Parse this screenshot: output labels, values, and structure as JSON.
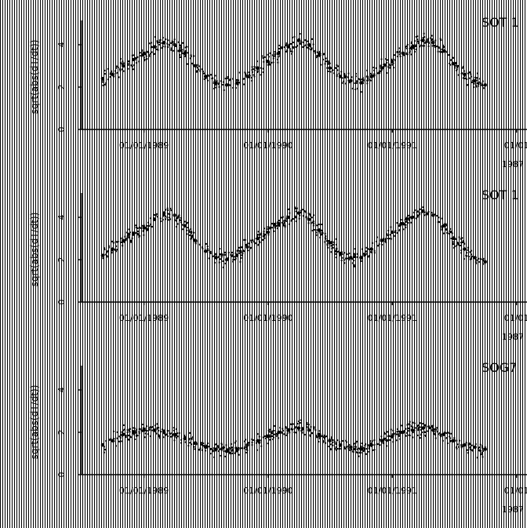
{
  "colors": {
    "background": "#ffffff",
    "ink": "#000000",
    "hatch": "#000000"
  },
  "chart_data": [
    {
      "type": "scatter",
      "title": "SOT 1",
      "ylabel": "sqrt(abs(dT/dt))",
      "y_ticks": [
        "0",
        "2",
        "4"
      ],
      "ylim": [
        0,
        5
      ],
      "x_ticks": [
        "01/01/1989",
        "01/01/1990",
        "01/01/1991",
        "01/01"
      ],
      "x_extra_label": "1987",
      "xlim": [
        "1988-07-01",
        "1992-02-01"
      ],
      "series": [
        {
          "points": [
            [
              "1988-09-01",
              2.4
            ],
            [
              "1988-10-01",
              2.6
            ],
            [
              "1988-11-01",
              3.0
            ],
            [
              "1988-12-01",
              3.3
            ],
            [
              "1989-01-01",
              3.6
            ],
            [
              "1989-02-01",
              3.9
            ],
            [
              "1989-03-01",
              4.1
            ],
            [
              "1989-04-01",
              4.0
            ],
            [
              "1989-05-01",
              3.6
            ],
            [
              "1989-06-01",
              3.0
            ],
            [
              "1989-07-01",
              2.5
            ],
            [
              "1989-08-01",
              2.2
            ],
            [
              "1989-09-01",
              2.1
            ],
            [
              "1989-10-01",
              2.2
            ],
            [
              "1989-11-01",
              2.5
            ],
            [
              "1989-12-01",
              2.9
            ],
            [
              "1990-01-01",
              3.2
            ],
            [
              "1990-02-01",
              3.6
            ],
            [
              "1990-03-01",
              3.9
            ],
            [
              "1990-04-01",
              4.2
            ],
            [
              "1990-05-01",
              4.0
            ],
            [
              "1990-06-01",
              3.5
            ],
            [
              "1990-07-01",
              2.9
            ],
            [
              "1990-08-01",
              2.5
            ],
            [
              "1990-09-01",
              2.3
            ],
            [
              "1990-10-01",
              2.2
            ],
            [
              "1990-11-01",
              2.5
            ],
            [
              "1990-12-01",
              2.9
            ],
            [
              "1991-01-01",
              3.2
            ],
            [
              "1991-02-01",
              3.6
            ],
            [
              "1991-03-01",
              3.9
            ],
            [
              "1991-04-01",
              4.2
            ],
            [
              "1991-05-01",
              4.1
            ],
            [
              "1991-06-01",
              3.7
            ],
            [
              "1991-07-01",
              3.1
            ],
            [
              "1991-08-01",
              2.6
            ],
            [
              "1991-09-01",
              2.3
            ],
            [
              "1991-10-01",
              2.1
            ]
          ]
        }
      ]
    },
    {
      "type": "scatter",
      "title": "SOT 1",
      "ylabel": "sqrt(abs(dT/dt))",
      "y_ticks": [
        "0",
        "2",
        "4"
      ],
      "ylim": [
        0,
        5
      ],
      "x_ticks": [
        "01/01/1989",
        "01/01/1990",
        "01/01/1991",
        "01/01"
      ],
      "x_extra_label": "1987",
      "xlim": [
        "1988-07-01",
        "1992-02-01"
      ],
      "series": [
        {
          "points": [
            [
              "1988-09-01",
              2.2
            ],
            [
              "1988-10-01",
              2.5
            ],
            [
              "1988-11-01",
              2.9
            ],
            [
              "1988-12-01",
              3.2
            ],
            [
              "1989-01-01",
              3.5
            ],
            [
              "1989-02-01",
              3.9
            ],
            [
              "1989-03-01",
              4.2
            ],
            [
              "1989-04-01",
              4.1
            ],
            [
              "1989-05-01",
              3.6
            ],
            [
              "1989-06-01",
              2.9
            ],
            [
              "1989-07-01",
              2.4
            ],
            [
              "1989-08-01",
              2.1
            ],
            [
              "1989-09-01",
              2.0
            ],
            [
              "1989-10-01",
              2.2
            ],
            [
              "1989-11-01",
              2.6
            ],
            [
              "1989-12-01",
              3.0
            ],
            [
              "1990-01-01",
              3.3
            ],
            [
              "1990-02-01",
              3.7
            ],
            [
              "1990-03-01",
              4.0
            ],
            [
              "1990-04-01",
              4.2
            ],
            [
              "1990-05-01",
              3.9
            ],
            [
              "1990-06-01",
              3.4
            ],
            [
              "1990-07-01",
              2.8
            ],
            [
              "1990-08-01",
              2.3
            ],
            [
              "1990-09-01",
              2.1
            ],
            [
              "1990-10-01",
              2.1
            ],
            [
              "1990-11-01",
              2.5
            ],
            [
              "1990-12-01",
              2.9
            ],
            [
              "1991-01-01",
              3.3
            ],
            [
              "1991-02-01",
              3.7
            ],
            [
              "1991-03-01",
              4.0
            ],
            [
              "1991-04-01",
              4.3
            ],
            [
              "1991-05-01",
              4.1
            ],
            [
              "1991-06-01",
              3.6
            ],
            [
              "1991-07-01",
              3.0
            ],
            [
              "1991-08-01",
              2.5
            ],
            [
              "1991-09-01",
              2.1
            ],
            [
              "1991-10-01",
              1.9
            ]
          ]
        }
      ]
    },
    {
      "type": "scatter",
      "title": "SOG7",
      "ylabel": "sqrt(abs(dT/dt))",
      "y_ticks": [
        "0",
        "2",
        "4"
      ],
      "ylim": [
        0,
        5
      ],
      "x_ticks": [
        "01/01/1989",
        "01/01/1990",
        "01/01/1991",
        "01/01"
      ],
      "x_extra_label": "1987",
      "xlim": [
        "1988-07-01",
        "1992-02-01"
      ],
      "series": [
        {
          "points": [
            [
              "1988-09-01",
              1.4
            ],
            [
              "1988-10-01",
              1.6
            ],
            [
              "1988-11-01",
              1.9
            ],
            [
              "1988-12-01",
              2.0
            ],
            [
              "1989-01-01",
              2.1
            ],
            [
              "1989-02-01",
              2.1
            ],
            [
              "1989-03-01",
              2.0
            ],
            [
              "1989-04-01",
              1.9
            ],
            [
              "1989-05-01",
              1.7
            ],
            [
              "1989-06-01",
              1.5
            ],
            [
              "1989-07-01",
              1.3
            ],
            [
              "1989-08-01",
              1.2
            ],
            [
              "1989-09-01",
              1.1
            ],
            [
              "1989-10-01",
              1.2
            ],
            [
              "1989-11-01",
              1.4
            ],
            [
              "1989-12-01",
              1.6
            ],
            [
              "1990-01-01",
              1.8
            ],
            [
              "1990-02-01",
              2.0
            ],
            [
              "1990-03-01",
              2.1
            ],
            [
              "1990-04-01",
              2.2
            ],
            [
              "1990-05-01",
              2.1
            ],
            [
              "1990-06-01",
              1.9
            ],
            [
              "1990-07-01",
              1.6
            ],
            [
              "1990-08-01",
              1.4
            ],
            [
              "1990-09-01",
              1.3
            ],
            [
              "1990-10-01",
              1.2
            ],
            [
              "1990-11-01",
              1.4
            ],
            [
              "1990-12-01",
              1.6
            ],
            [
              "1991-01-01",
              1.8
            ],
            [
              "1991-02-01",
              2.0
            ],
            [
              "1991-03-01",
              2.1
            ],
            [
              "1991-04-01",
              2.2
            ],
            [
              "1991-05-01",
              2.1
            ],
            [
              "1991-06-01",
              1.9
            ],
            [
              "1991-07-01",
              1.6
            ],
            [
              "1991-08-01",
              1.4
            ],
            [
              "1991-09-01",
              1.3
            ],
            [
              "1991-10-01",
              1.2
            ]
          ]
        }
      ]
    }
  ]
}
